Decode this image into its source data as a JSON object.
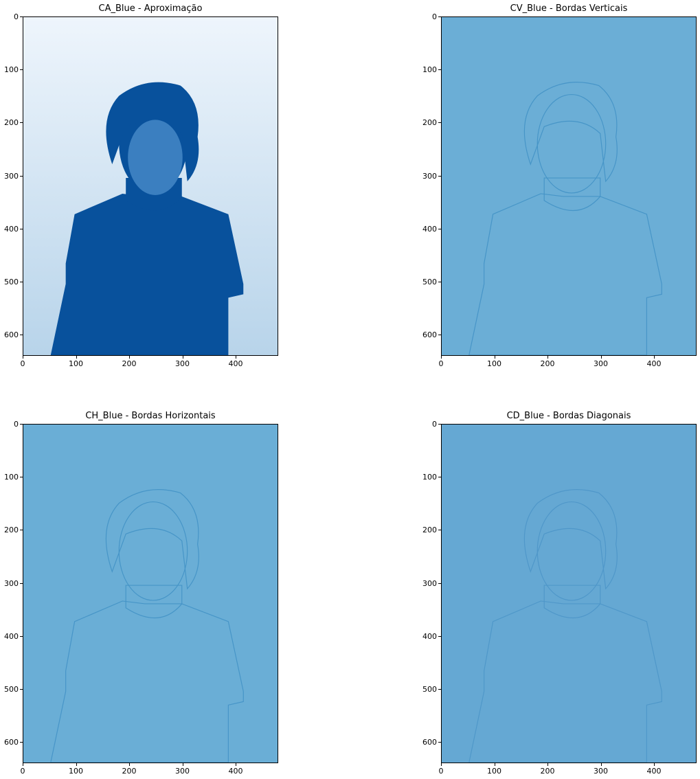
{
  "panels": [
    {
      "id": "ca",
      "title": "CA_Blue - Aproximação",
      "kind": "approximation",
      "background": "#e7f0fa",
      "accent": "#08519c",
      "y_ticks": [
        "0",
        "100",
        "200",
        "300",
        "400",
        "500",
        "600"
      ],
      "x_ticks": [
        "0",
        "100",
        "200",
        "300",
        "400"
      ]
    },
    {
      "id": "cv",
      "title": "CV_Blue - Bordas Verticais",
      "kind": "edges",
      "background": "#6baed6",
      "accent": "#3e8fc4",
      "y_ticks": [
        "0",
        "100",
        "200",
        "300",
        "400",
        "500",
        "600"
      ],
      "x_ticks": [
        "0",
        "100",
        "200",
        "300",
        "400"
      ]
    },
    {
      "id": "ch",
      "title": "CH_Blue - Bordas Horizontais",
      "kind": "edges",
      "background": "#6aaed6",
      "accent": "#3e8fc4",
      "y_ticks": [
        "0",
        "100",
        "200",
        "300",
        "400",
        "500",
        "600"
      ],
      "x_ticks": [
        "0",
        "100",
        "200",
        "300",
        "400"
      ]
    },
    {
      "id": "cd",
      "title": "CD_Blue - Bordas Diagonais",
      "kind": "edges",
      "background": "#65a8d3",
      "accent": "#4a93c7",
      "y_ticks": [
        "0",
        "100",
        "200",
        "300",
        "400",
        "500",
        "600"
      ],
      "x_ticks": [
        "0",
        "100",
        "200",
        "300",
        "400"
      ]
    }
  ]
}
